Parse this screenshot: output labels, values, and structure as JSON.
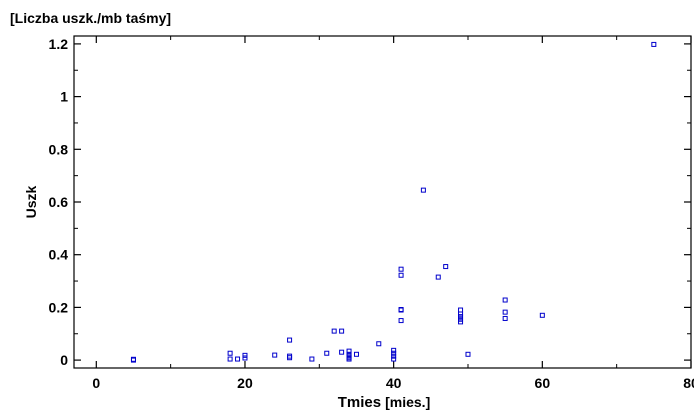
{
  "chart_data": {
    "type": "scatter",
    "title": "",
    "unit_label": "[Liczba uszk./mb taśmy]",
    "xlabel_main": "Tmies",
    "xlabel_unit": "[mies.]",
    "ylabel": "Uszk",
    "xlim": [
      -3,
      80
    ],
    "ylim": [
      -0.03,
      1.23
    ],
    "x_ticks": [
      0,
      20,
      40,
      60,
      80
    ],
    "y_ticks": [
      0,
      0.2,
      0.4,
      0.6,
      0.8,
      1,
      1.2
    ],
    "x_tick_labels": [
      "0",
      "20",
      "40",
      "60",
      "80"
    ],
    "y_tick_labels": [
      "0",
      "0.2",
      "0.4",
      "0.6",
      "0.8",
      "1",
      "1.2"
    ],
    "grid": false,
    "marker": "open-square",
    "marker_color": "#0000cc",
    "series": [
      {
        "points": [
          [
            5,
            0.0
          ],
          [
            5,
            0.003
          ],
          [
            18,
            0.004
          ],
          [
            18,
            0.026
          ],
          [
            19,
            0.004
          ],
          [
            20,
            0.008
          ],
          [
            20,
            0.018
          ],
          [
            24,
            0.019
          ],
          [
            26,
            0.009
          ],
          [
            26,
            0.015
          ],
          [
            26,
            0.076
          ],
          [
            29,
            0.004
          ],
          [
            31,
            0.026
          ],
          [
            32,
            0.11
          ],
          [
            33,
            0.03
          ],
          [
            33,
            0.11
          ],
          [
            34,
            0.004
          ],
          [
            34,
            0.009
          ],
          [
            34,
            0.015
          ],
          [
            34,
            0.022
          ],
          [
            34,
            0.034
          ],
          [
            35,
            0.022
          ],
          [
            38,
            0.062
          ],
          [
            40,
            0.004
          ],
          [
            40,
            0.015
          ],
          [
            40,
            0.026
          ],
          [
            40,
            0.037
          ],
          [
            41,
            0.15
          ],
          [
            41,
            0.19
          ],
          [
            41,
            0.192
          ],
          [
            41,
            0.322
          ],
          [
            41,
            0.345
          ],
          [
            44,
            0.645
          ],
          [
            46,
            0.315
          ],
          [
            47,
            0.355
          ],
          [
            49,
            0.145
          ],
          [
            49,
            0.155
          ],
          [
            49,
            0.165
          ],
          [
            49,
            0.175
          ],
          [
            49,
            0.19
          ],
          [
            50,
            0.022
          ],
          [
            55,
            0.158
          ],
          [
            55,
            0.182
          ],
          [
            55,
            0.228
          ],
          [
            60,
            0.17
          ],
          [
            75,
            1.198
          ]
        ]
      }
    ]
  }
}
